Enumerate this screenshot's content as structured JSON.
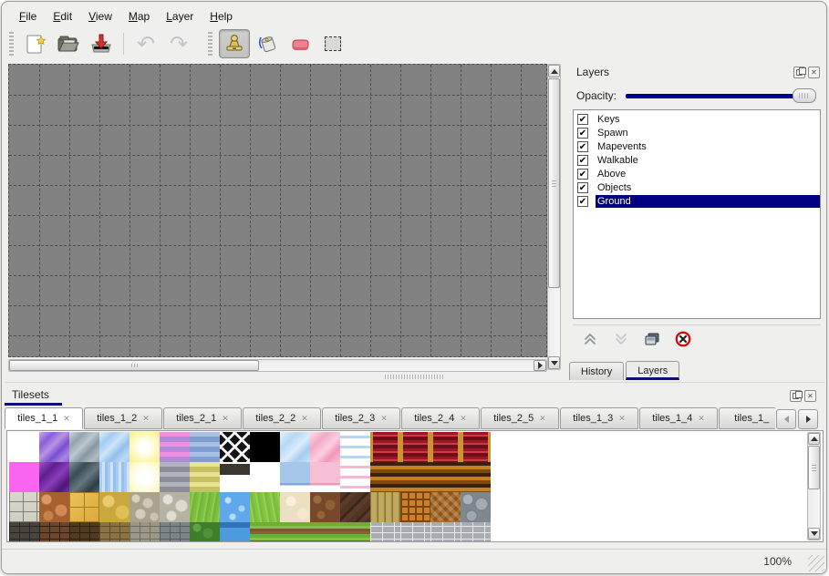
{
  "menu": {
    "items": [
      {
        "label": "File"
      },
      {
        "label": "Edit"
      },
      {
        "label": "View"
      },
      {
        "label": "Map"
      },
      {
        "label": "Layer"
      },
      {
        "label": "Help"
      }
    ]
  },
  "toolbar": {
    "tools": [
      {
        "name": "new-file",
        "enabled": true,
        "active": false
      },
      {
        "name": "open-file",
        "enabled": true,
        "active": false
      },
      {
        "name": "save-file",
        "enabled": true,
        "active": false
      },
      {
        "name": "undo",
        "enabled": false,
        "active": false
      },
      {
        "name": "redo",
        "enabled": false,
        "active": false
      },
      {
        "name": "stamp-tool",
        "enabled": true,
        "active": true
      },
      {
        "name": "fill-tool",
        "enabled": true,
        "active": false
      },
      {
        "name": "eraser-tool",
        "enabled": true,
        "active": false
      },
      {
        "name": "rect-select-tool",
        "enabled": true,
        "active": false
      }
    ]
  },
  "layers_panel": {
    "title": "Layers",
    "window_icons": [
      "float-icon",
      "close-icon"
    ],
    "opacity_label": "Opacity:",
    "opacity_percent": 100,
    "layers": [
      {
        "name": "Keys",
        "checked": true,
        "selected": false
      },
      {
        "name": "Spawn",
        "checked": true,
        "selected": false
      },
      {
        "name": "Mapevents",
        "checked": true,
        "selected": false
      },
      {
        "name": "Walkable",
        "checked": true,
        "selected": false
      },
      {
        "name": "Above",
        "checked": true,
        "selected": false
      },
      {
        "name": "Objects",
        "checked": true,
        "selected": false
      },
      {
        "name": "Ground",
        "checked": true,
        "selected": true
      }
    ],
    "layer_buttons": [
      "raise-layer-icon",
      "lower-layer-icon",
      "duplicate-layer-icon",
      "delete-layer-icon"
    ],
    "tabs": [
      {
        "label": "History",
        "active": false
      },
      {
        "label": "Layers",
        "active": true
      }
    ]
  },
  "tilesets_panel": {
    "title": "Tilesets",
    "window_icons": [
      "float-icon",
      "close-icon"
    ],
    "tabs": [
      {
        "label": "tiles_1_1",
        "active": true
      },
      {
        "label": "tiles_1_2",
        "active": false
      },
      {
        "label": "tiles_2_1",
        "active": false
      },
      {
        "label": "tiles_2_2",
        "active": false
      },
      {
        "label": "tiles_2_3",
        "active": false
      },
      {
        "label": "tiles_2_4",
        "active": false
      },
      {
        "label": "tiles_2_5",
        "active": false
      },
      {
        "label": "tiles_1_3",
        "active": false
      },
      {
        "label": "tiles_1_4",
        "active": false
      },
      {
        "label": "tiles_1_",
        "active": false,
        "truncated": true
      }
    ],
    "scroll_buttons": [
      "scroll-left-icon",
      "scroll-right-icon"
    ]
  },
  "status_bar": {
    "zoom_level": "100%"
  },
  "colors": {
    "accent_navy": "#0a1172",
    "selection_navy": "#000080",
    "opacity_slider": "#00008b",
    "canvas_gray": "#828282",
    "grid_dash": "#4e4e4e",
    "window_bg": "#efefed"
  },
  "palette": {
    "rows": [
      [
        {
          "name": "blank-white",
          "bg": "#ffffff"
        },
        {
          "name": "crystal-purple",
          "bg": "linear-gradient(135deg,#c7a6ee 0%,#8d5ed8 25%,#b893e6 45%,#7b4ed2 65%,#a987e0 85%,#8d5ed8 100%)"
        },
        {
          "name": "crystal-gray",
          "bg": "linear-gradient(135deg,#cfd6da 0%,#93a3ad 25%,#bcc7cd 45%,#8497a2 65%,#aebbc2 85%,#93a3ad 100%)"
        },
        {
          "name": "crystal-lightblue",
          "bg": "linear-gradient(135deg,#dceefc 0%,#a3cdf0 25%,#cde5f8 45%,#90c0ea 65%,#bcd9f4 85%,#a3cdf0 100%)"
        },
        {
          "name": "glow-yellow",
          "bg": "radial-gradient(circle,#ffffff 20%,#fdf6b0 70%,#f7ec8e 100%)"
        },
        {
          "name": "stripes-pink",
          "bg": "repeating-linear-gradient(180deg,#ee8fe2 0 5px,#b18bd9 5px 11px)"
        },
        {
          "name": "stripes-blue",
          "bg": "repeating-linear-gradient(180deg,#a9c0e4 0 5px,#7e9ed2 5px 11px)"
        },
        {
          "name": "lattice-dark",
          "bg": "repeating-linear-gradient(45deg,#f5f5f5 0 3px,transparent 3px 11px),repeating-linear-gradient(-45deg,#f5f5f5 0 3px,#141414 3px 11px)"
        },
        {
          "name": "black",
          "bg": "#000000"
        },
        {
          "name": "crystal-paleblue",
          "bg": "linear-gradient(135deg,#e4f2fd 0%,#b5d8f5 30%,#dcecfa 55%,#a6cdf1 75%,#cae2f8 100%)"
        },
        {
          "name": "crystal-pink",
          "bg": "linear-gradient(135deg,#fbdde9 0%,#f4a8c6 30%,#f9cfdf 55%,#f098bc 75%,#f7c3d7 100%)"
        },
        {
          "name": "wave-blue",
          "bg": "repeating-linear-gradient(180deg,#ffffff 0 4px,#b8d7f2 4px 7px,#ffffff 7px 11px)"
        },
        {
          "name": "curtain-red",
          "bg": "linear-gradient(90deg,#c9932f 0 3px,rgba(0,0,0,0) 3px 30px,#c9932f 30px),repeating-linear-gradient(180deg,#9c1626 0 3px,#cb3a46 3px 5px,#6c0f18 5px 9px)"
        },
        {
          "name": "curtain-red",
          "bg": "linear-gradient(90deg,#c9932f 0 3px,rgba(0,0,0,0) 3px 30px,#c9932f 30px),repeating-linear-gradient(180deg,#9c1626 0 3px,#cb3a46 3px 5px,#6c0f18 5px 9px)"
        },
        {
          "name": "curtain-red",
          "bg": "linear-gradient(90deg,#c9932f 0 3px,rgba(0,0,0,0) 3px 30px,#c9932f 30px),repeating-linear-gradient(180deg,#9c1626 0 3px,#cb3a46 3px 5px,#6c0f18 5px 9px)"
        },
        {
          "name": "curtain-red",
          "bg": "linear-gradient(90deg,#c9932f 0 3px,rgba(0,0,0,0) 3px 30px,#c9932f 30px),repeating-linear-gradient(180deg,#9c1626 0 3px,#cb3a46 3px 5px,#6c0f18 5px 9px)"
        }
      ],
      [
        {
          "name": "magenta",
          "bg": "#f964f1"
        },
        {
          "name": "crystal-darkpurple",
          "bg": "linear-gradient(135deg,#a64ecf 0%,#5e1f8e 30%,#8b3cba 55%,#4d1579 80%,#7331a5 100%)"
        },
        {
          "name": "crystal-darkgray",
          "bg": "linear-gradient(135deg,#7c909b 0%,#3c4c55 30%,#64767f 55%,#2f3d45 80%,#536470 100%)"
        },
        {
          "name": "streaks-blue",
          "bg": "repeating-linear-gradient(90deg,#a9cdf2 0 3px,#cfe4f9 3px 6px,#97c0ee 6px 9px)"
        },
        {
          "name": "glow-pale",
          "bg": "radial-gradient(circle,#ffffff 30%,#fdf9cf 75%,#f9f1a8 100%)"
        },
        {
          "name": "stripes-gray",
          "bg": "repeating-linear-gradient(180deg,#b3b3bd 0 5px,#8d8d99 5px 11px)"
        },
        {
          "name": "stripes-olive",
          "bg": "repeating-linear-gradient(180deg,#e6e296 0 5px,#c6c05e 5px 11px)"
        },
        {
          "name": "plaque-dark",
          "bg": "linear-gradient(180deg,rgba(0,0,0,0) 0 2px,#3a382e 2px 14px,rgba(0,0,0,0) 14px),#ffffff"
        },
        {
          "name": "blank-white",
          "bg": "#ffffff"
        },
        {
          "name": "flat-blue",
          "bg": "linear-gradient(180deg,#a7c6ec 0 70%,#7fa9da 70% 78%,#ffffff 78%)"
        },
        {
          "name": "flat-pink",
          "bg": "linear-gradient(180deg,#f6bfd3 0 70%,#ec9ab9 70% 78%,#ffffff 78%)"
        },
        {
          "name": "wave-pink",
          "bg": "repeating-linear-gradient(180deg,#ffffff 0 4px,#f4b8cf 4px 7px,#ffffff 7px 11px)"
        },
        {
          "name": "stripes-brown",
          "bg": "repeating-linear-gradient(180deg,#38220f 0 4px,#c9801f 4px 8px,#7c4a12 8px 12px)"
        },
        {
          "name": "stripes-brown",
          "bg": "repeating-linear-gradient(180deg,#38220f 0 4px,#c9801f 4px 8px,#7c4a12 8px 12px)"
        },
        {
          "name": "stripes-brown",
          "bg": "repeating-linear-gradient(180deg,#38220f 0 4px,#c9801f 4px 8px,#7c4a12 8px 12px)"
        },
        {
          "name": "stripes-brown",
          "bg": "repeating-linear-gradient(180deg,#38220f 0 4px,#c9801f 4px 8px,#7c4a12 8px 12px)"
        }
      ],
      [
        {
          "name": "stone-blocks",
          "bg": "repeating-linear-gradient(0deg,rgba(120,118,105,0.9) 0 1px,transparent 1px 11px),repeating-linear-gradient(90deg,rgba(120,118,105,0.9) 0 1px,transparent 1px 15px),linear-gradient(#d9d8cc,#cfcec2)"
        },
        {
          "name": "cobble-orange",
          "bg": "radial-gradient(circle at 8px 8px,#d99a68 5px,transparent 6px),radial-gradient(circle at 24px 20px,#d08a52 6px,transparent 7px),radial-gradient(circle at 10px 26px,#c87f48 5px,transparent 6px),#a5602f"
        },
        {
          "name": "gold-tiles",
          "bg": "repeating-linear-gradient(0deg,#a87a1e 0 1px,transparent 1px 16px),repeating-linear-gradient(90deg,#a87a1e 0 1px,transparent 1px 16px),linear-gradient(135deg,#ecc35a,#d9a93c)"
        },
        {
          "name": "path-yellow",
          "bg": "radial-gradient(circle at 10px 10px,#e8cb6d 6px,transparent 7px),radial-gradient(circle at 25px 22px,#dfbf58 7px,transparent 8px),#c9a83e"
        },
        {
          "name": "pebbles-gray",
          "bg": "radial-gradient(circle at 7px 7px,#d9d4c2 4px,transparent 5px),radial-gradient(circle at 20px 12px,#cec9b6 5px,transparent 6px),radial-gradient(circle at 12px 24px,#d4cfbc 5px,transparent 6px),radial-gradient(circle at 27px 27px,#c9c4b0 4px,transparent 5px),#a9a28c"
        },
        {
          "name": "stones-light",
          "bg": "radial-gradient(circle at 9px 8px,#e3e1d6 5px,transparent 6px),radial-gradient(circle at 24px 15px,#dddbce 6px,transparent 7px),radial-gradient(circle at 13px 26px,#e0decf 5px,transparent 6px),#b5b2a2"
        },
        {
          "name": "grass",
          "bg": "repeating-linear-gradient(100deg,#7dbf40 0 3px,#8ccd4e 3px 5px,#74b53a 5px 8px)"
        },
        {
          "name": "water",
          "bg": "radial-gradient(circle at 9px 9px,#bfe0fb 3px,transparent 4px),radial-gradient(circle at 24px 18px,#a6d4f8 3px,transparent 4px),radial-gradient(circle at 14px 27px,#b5dbfa 3px,transparent 4px),#5fa8ec"
        },
        {
          "name": "grass",
          "bg": "repeating-linear-gradient(80deg,#84c443 0 3px,#93d251 3px 5px,#7bba3d 5px 8px)"
        },
        {
          "name": "sand-cream",
          "bg": "radial-gradient(circle at 12px 10px,#f9efdb 5px,transparent 6px),radial-gradient(circle at 25px 24px,#f4e7cc 6px,transparent 7px),#eddfc2"
        },
        {
          "name": "dirt-pebbles",
          "bg": "radial-gradient(circle at 8px 8px,#9a6a40 4px,transparent 5px),radial-gradient(circle at 22px 14px,#8f5f36 5px,transparent 6px),radial-gradient(circle at 12px 25px,#946438 4px,transparent 5px),#77492a"
        },
        {
          "name": "wood-dark",
          "bg": "repeating-linear-gradient(135deg,#513524 0 6px,#3c2618 6px 9px,#5b3c28 9px 14px)"
        },
        {
          "name": "planks-vertical",
          "bg": "repeating-linear-gradient(90deg,#8a7438 0 1px,#bfa95e 1px 7px,#9c8545 7px 8px)"
        },
        {
          "name": "basket-weave",
          "bg": "repeating-linear-gradient(0deg,#7a4712 0 2px,transparent 2px 8px),repeating-linear-gradient(90deg,#7a4712 0 2px,#cd7f2a 2px 8px)"
        },
        {
          "name": "herringbone-wood",
          "bg": "repeating-linear-gradient(-45deg,rgba(255,255,255,0.14) 0 4px,transparent 4px 8px),repeating-linear-gradient(45deg,#b0752f 0 4px,#8a5520 4px 8px)"
        },
        {
          "name": "stone-rounds",
          "bg": "radial-gradient(circle at 8px 8px,#aab3b8 5px,#6f797f 6px,transparent 7px),radial-gradient(circle at 23px 13px,#a2abb0 6px,#6f797f 7px,transparent 8px),radial-gradient(circle at 12px 26px,#9fa8ad 5px,#6f797f 6px,transparent 7px),#7e888e"
        }
      ],
      [
        {
          "name": "brick-darkgray",
          "bg": "repeating-linear-gradient(0deg,#2a2624 0 1px,transparent 1px 7px),repeating-linear-gradient(90deg,#2a2624 0 1px,transparent 1px 11px),#4a443f"
        },
        {
          "name": "brick-brown",
          "bg": "repeating-linear-gradient(0deg,#2e1f14 0 1px,transparent 1px 7px),repeating-linear-gradient(90deg,#2e1f14 0 1px,transparent 1px 11px),#6b452c"
        },
        {
          "name": "brick-darkbrown",
          "bg": "repeating-linear-gradient(0deg,#2e1f14 0 1px,transparent 1px 7px),repeating-linear-gradient(90deg,#2e1f14 0 1px,transparent 1px 11px),#503a20"
        },
        {
          "name": "brick-tan",
          "bg": "repeating-linear-gradient(0deg,#5e4c28 0 1px,transparent 1px 7px),repeating-linear-gradient(90deg,#5e4c28 0 1px,transparent 1px 11px),#8a7344"
        },
        {
          "name": "stone-graywall",
          "bg": "repeating-linear-gradient(0deg,#6e6a5e 0 1px,transparent 1px 7px),repeating-linear-gradient(90deg,#6e6a5e 0 1px,transparent 1px 11px),#9b9789"
        },
        {
          "name": "brick-gray",
          "bg": "repeating-linear-gradient(0deg,#565c60 0 1px,transparent 1px 7px),repeating-linear-gradient(90deg,#565c60 0 1px,transparent 1px 11px),#7e8589"
        },
        {
          "name": "hedge-green",
          "bg": "radial-gradient(circle at 8px 6px,#5ca344 4px,transparent 5px),radial-gradient(circle at 20px 12px,#4f9339 5px,transparent 6px),#3f7c2c"
        },
        {
          "name": "water-edge",
          "bg": "linear-gradient(180deg,#2f74b4 0 6px,#4e9ade 6px)"
        },
        {
          "name": "grass-dirt-rows",
          "bg": "repeating-linear-gradient(180deg,#6fae35 0 4px,#83c243 4px 7px,#7b5630 7px 10px,#8a6238 10px 13px)"
        },
        {
          "name": "grass-dirt-rows",
          "bg": "repeating-linear-gradient(180deg,#6fae35 0 4px,#83c243 4px 7px,#7b5630 7px 10px,#8a6238 10px 13px)"
        },
        {
          "name": "grass-dirt-rows",
          "bg": "repeating-linear-gradient(180deg,#6fae35 0 4px,#83c243 4px 7px,#7b5630 7px 10px,#8a6238 10px 13px)"
        },
        {
          "name": "grass-dirt-rows",
          "bg": "repeating-linear-gradient(180deg,#6fae35 0 4px,#83c243 4px 7px,#7b5630 7px 10px,#8a6238 10px 13px)"
        },
        {
          "name": "stonewall-light",
          "bg": "repeating-linear-gradient(0deg,#e8eaec 0 1px,transparent 1px 7px),repeating-linear-gradient(90deg,#e8eaec 0 1px,transparent 1px 13px),#a9adb2"
        },
        {
          "name": "stonewall-light",
          "bg": "repeating-linear-gradient(0deg,#e8eaec 0 1px,transparent 1px 7px),repeating-linear-gradient(90deg,#e8eaec 0 1px,transparent 1px 13px),#a9adb2"
        },
        {
          "name": "stonewall-light",
          "bg": "repeating-linear-gradient(0deg,#e8eaec 0 1px,transparent 1px 7px),repeating-linear-gradient(90deg,#e8eaec 0 1px,transparent 1px 13px),#a9adb2"
        },
        {
          "name": "stonewall-light",
          "bg": "repeating-linear-gradient(0deg,#e8eaec 0 1px,transparent 1px 7px),repeating-linear-gradient(90deg,#e8eaec 0 1px,transparent 1px 13px),#a9adb2"
        }
      ]
    ]
  }
}
